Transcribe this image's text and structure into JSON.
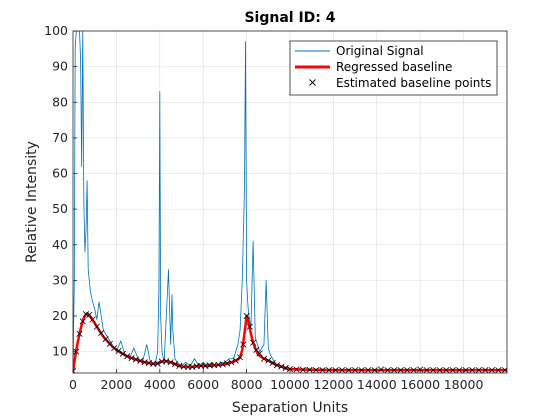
{
  "chart_data": {
    "type": "line",
    "title": "Signal ID: 4",
    "xlabel": "Separation Units",
    "ylabel": "Relative Intensity",
    "xlim": [
      0,
      20000
    ],
    "ylim": [
      4,
      100
    ],
    "grid": true,
    "legend_position": "top-right",
    "x_ticks": [
      0,
      2000,
      4000,
      6000,
      8000,
      10000,
      12000,
      14000,
      16000,
      18000
    ],
    "y_ticks": [
      10,
      20,
      30,
      40,
      50,
      60,
      70,
      80,
      90,
      100
    ],
    "series": [
      {
        "name": "Original Signal",
        "style": "line",
        "color": "#0072BD",
        "x": [
          0,
          60,
          100,
          150,
          200,
          250,
          300,
          350,
          400,
          450,
          500,
          550,
          600,
          650,
          700,
          750,
          800,
          900,
          1000,
          1100,
          1200,
          1400,
          1600,
          1800,
          2000,
          2200,
          2400,
          2600,
          2800,
          3000,
          3200,
          3400,
          3600,
          3800,
          3900,
          3960,
          4000,
          4040,
          4100,
          4200,
          4400,
          4500,
          4560,
          4600,
          4700,
          4800,
          5000,
          5200,
          5400,
          5600,
          5800,
          6000,
          6200,
          6400,
          6600,
          6800,
          7000,
          7200,
          7400,
          7600,
          7700,
          7800,
          7900,
          7950,
          8000,
          8050,
          8100,
          8200,
          8300,
          8400,
          8500,
          8600,
          8800,
          8900,
          9000,
          9100,
          9200,
          9400,
          9600,
          9800,
          10000,
          10500,
          11000,
          11500,
          12000,
          12500,
          13000,
          13500,
          14000,
          14500,
          15000,
          15500,
          16000,
          16500,
          17000,
          17500,
          18000,
          18500,
          19000,
          19500,
          20000
        ],
        "y": [
          5,
          30,
          95,
          100,
          100,
          100,
          100,
          92,
          62,
          100,
          52,
          38,
          44,
          58,
          33,
          30,
          27,
          24,
          22,
          19,
          24,
          16,
          14,
          12,
          10,
          13,
          9,
          8,
          11,
          8,
          7,
          12,
          6,
          7,
          10,
          28,
          83,
          20,
          10,
          7,
          33,
          12,
          26,
          16,
          8,
          7,
          6,
          7,
          6,
          8,
          6,
          7,
          6,
          7,
          6,
          7,
          7,
          8,
          8,
          12,
          16,
          30,
          55,
          97,
          30,
          24,
          20,
          17,
          41,
          14,
          12,
          10,
          12,
          30,
          11,
          9,
          8,
          6,
          6,
          5,
          5,
          5,
          5,
          5,
          5,
          5,
          5,
          5,
          5,
          5,
          5,
          5,
          5,
          5,
          5,
          5,
          5,
          5,
          5,
          5,
          5
        ]
      },
      {
        "name": "Regressed baseline",
        "style": "line",
        "color": "#FF0000",
        "x": [
          0,
          100,
          200,
          300,
          400,
          500,
          600,
          700,
          800,
          1000,
          1200,
          1400,
          1600,
          1800,
          2000,
          2200,
          2400,
          2600,
          2800,
          3000,
          3200,
          3400,
          3600,
          3800,
          4000,
          4200,
          4400,
          4600,
          4800,
          5000,
          5200,
          5400,
          5600,
          5800,
          6000,
          6200,
          6400,
          6600,
          6800,
          7000,
          7200,
          7400,
          7600,
          7700,
          7800,
          7900,
          8000,
          8100,
          8200,
          8300,
          8400,
          8500,
          8600,
          8800,
          9000,
          9200,
          9400,
          9600,
          9800,
          10000,
          10500,
          11000,
          12000,
          13000,
          14000,
          15000,
          16000,
          17000,
          18000,
          19000,
          20000
        ],
        "y": [
          4.5,
          8.5,
          12,
          15,
          17.5,
          19.5,
          20.5,
          20.5,
          19.8,
          18,
          16,
          14.2,
          12.8,
          11.5,
          10.5,
          9.7,
          9,
          8.4,
          8,
          7.6,
          7.2,
          6.9,
          6.7,
          6.5,
          7,
          7.4,
          7.2,
          6.8,
          6.2,
          5.8,
          5.7,
          5.7,
          5.8,
          6,
          6,
          6,
          6.1,
          6.2,
          6.3,
          6.5,
          6.8,
          7.2,
          7.8,
          8.4,
          10.5,
          15,
          20,
          18,
          15,
          12.5,
          11,
          9.5,
          8.8,
          8,
          7.5,
          6.8,
          6.2,
          5.8,
          5.4,
          5.1,
          5,
          4.9,
          4.8,
          4.8,
          4.8,
          4.8,
          4.8,
          4.8,
          4.8,
          4.8,
          4.8
        ]
      },
      {
        "name": "Estimated baseline points",
        "style": "marker",
        "color": "#000000",
        "x": [
          0,
          150,
          300,
          450,
          600,
          750,
          900,
          1100,
          1300,
          1500,
          1700,
          1900,
          2100,
          2300,
          2500,
          2700,
          2900,
          3100,
          3300,
          3500,
          3700,
          3900,
          4100,
          4300,
          4500,
          4700,
          4900,
          5100,
          5300,
          5500,
          5700,
          5900,
          6100,
          6300,
          6500,
          6700,
          6900,
          7100,
          7300,
          7500,
          7700,
          7850,
          8000,
          8150,
          8300,
          8450,
          8600,
          8800,
          9000,
          9200,
          9400,
          9600,
          9800,
          10000,
          10300,
          10600,
          10900,
          11200,
          11500,
          11800,
          12100,
          12400,
          12700,
          13000,
          13300,
          13600,
          13900,
          14200,
          14500,
          14800,
          15100,
          15400,
          15700,
          16000,
          16300,
          16600,
          16900,
          17200,
          17500,
          17800,
          18100,
          18400,
          18700,
          19000,
          19300,
          19600,
          19900
        ],
        "y": [
          4.5,
          10,
          15,
          18.5,
          20.5,
          20.3,
          19,
          17,
          15.2,
          13.5,
          12.2,
          11,
          10.2,
          9.4,
          8.7,
          8.2,
          7.8,
          7.4,
          7,
          6.8,
          6.6,
          6.6,
          7.2,
          7.3,
          7,
          6.5,
          6,
          5.8,
          5.7,
          5.7,
          5.9,
          6,
          6,
          6.1,
          6.2,
          6.3,
          6.4,
          6.7,
          7,
          7.5,
          8.4,
          12,
          20,
          17,
          12.5,
          10.5,
          9.5,
          8,
          7.5,
          6.8,
          6.2,
          5.8,
          5.4,
          5.1,
          5,
          4.9,
          4.9,
          4.8,
          4.8,
          4.8,
          4.8,
          4.8,
          4.8,
          4.8,
          4.8,
          4.8,
          4.8,
          5,
          4.8,
          4.8,
          4.8,
          4.8,
          4.8,
          5,
          4.8,
          4.8,
          4.8,
          4.8,
          4.8,
          4.8,
          4.8,
          4.8,
          4.8,
          4.8,
          4.8,
          4.8,
          4.8
        ]
      }
    ]
  }
}
